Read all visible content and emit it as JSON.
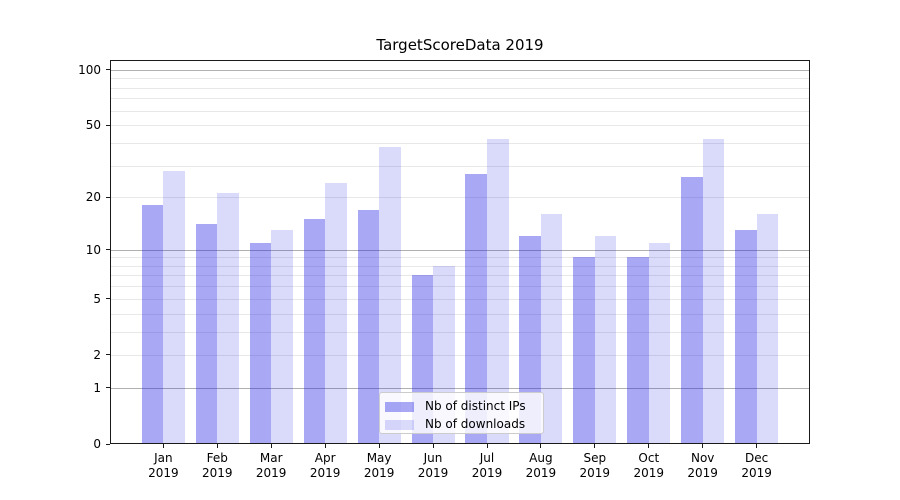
{
  "figure": {
    "background": "#ffffff",
    "spine_color": "#1a1a1a"
  },
  "chart_data": {
    "type": "bar",
    "title": "TargetScoreData 2019",
    "categories": [
      "Jan",
      "Feb",
      "Mar",
      "Apr",
      "May",
      "Jun",
      "Jul",
      "Aug",
      "Sep",
      "Oct",
      "Nov",
      "Dec"
    ],
    "x_tick_year": "2019",
    "series": [
      {
        "name": "Nb of distinct IPs",
        "color": "#1919e6",
        "alpha": 0.38,
        "rendered_color": "#a8a8f5",
        "values": [
          18,
          14,
          11,
          15,
          17,
          7,
          27,
          12,
          9,
          9,
          26,
          13
        ]
      },
      {
        "name": "Nb of downloads",
        "color": "#1919e6",
        "alpha": 0.16,
        "rendered_color": "#dadaf9",
        "values": [
          28,
          21,
          13,
          24,
          38,
          8,
          42,
          16,
          12,
          11,
          42,
          16
        ]
      }
    ],
    "xlabel": "",
    "ylabel": "",
    "yscale": "log1p",
    "ylim": [
      0,
      113
    ],
    "yticks": [
      0,
      1,
      2,
      5,
      10,
      20,
      50,
      100
    ],
    "grid": {
      "major_lines": [
        1,
        10,
        100
      ],
      "minor_lines": [
        2,
        3,
        4,
        5,
        6,
        7,
        8,
        9,
        20,
        30,
        40,
        50,
        60,
        70,
        80,
        90
      ],
      "major_color": "#b0b0b0",
      "minor_color": "#e8e8e8"
    },
    "legend_location": "lower center"
  }
}
